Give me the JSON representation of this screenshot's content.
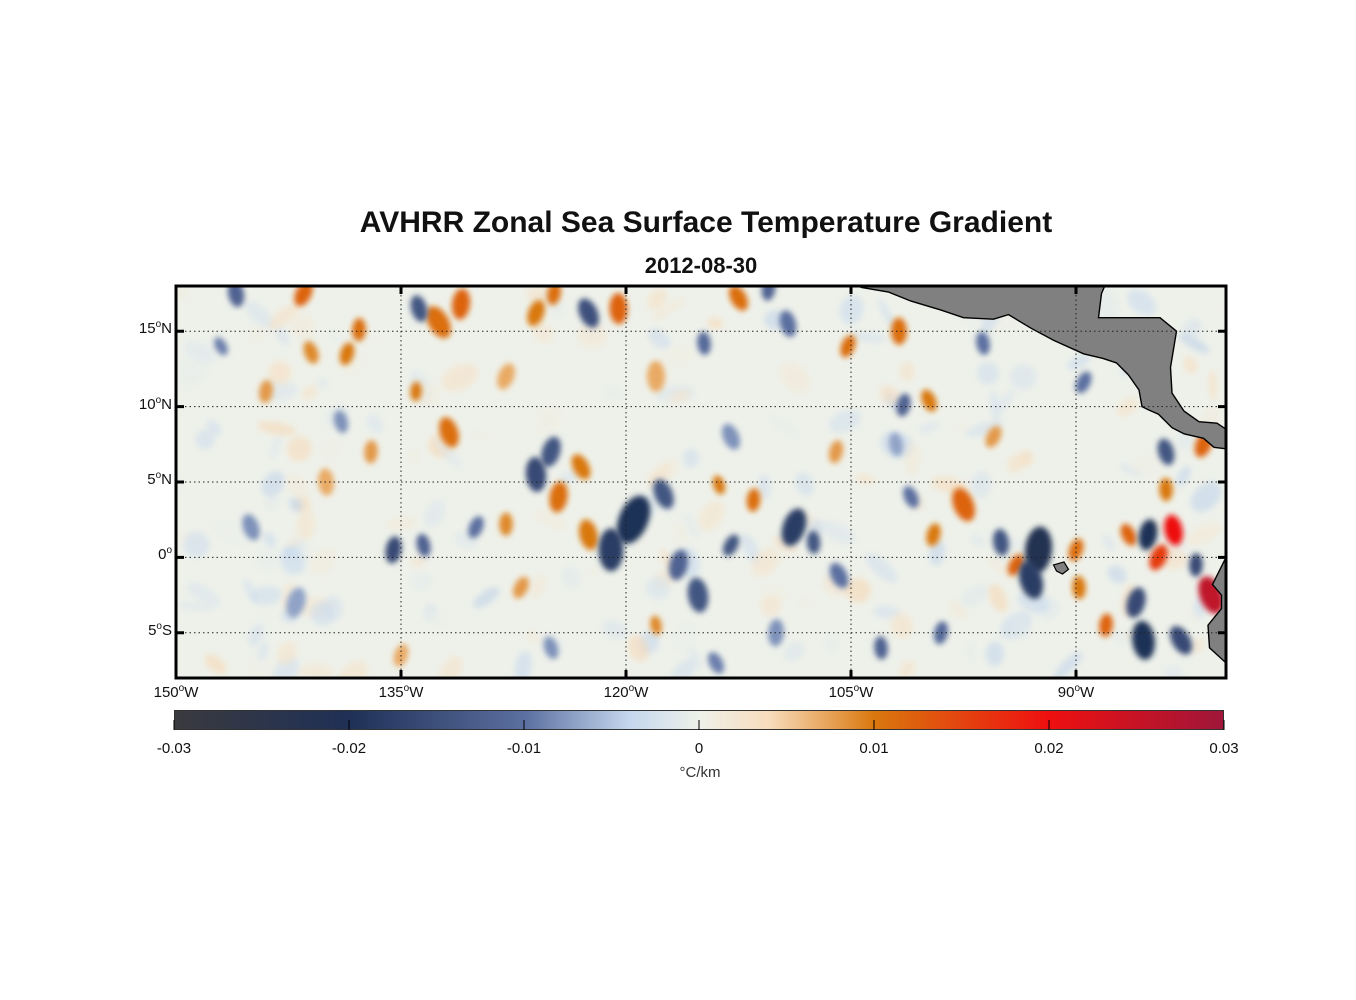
{
  "title": "AVHRR Zonal Sea Surface Temperature Gradient",
  "subtitle": "2012-08-30",
  "map": {
    "lon_range": [
      -150,
      -80
    ],
    "lat_range": [
      -8,
      18
    ],
    "lat_ticks": [
      {
        "value": 15,
        "deg": "15",
        "hemi": "N"
      },
      {
        "value": 10,
        "deg": "10",
        "hemi": "N"
      },
      {
        "value": 5,
        "deg": "5",
        "hemi": "N"
      },
      {
        "value": 0,
        "deg": "0",
        "hemi": ""
      },
      {
        "value": -5,
        "deg": "5",
        "hemi": "S"
      }
    ],
    "lon_ticks": [
      {
        "value": -150,
        "deg": "150",
        "hemi": "W"
      },
      {
        "value": -135,
        "deg": "135",
        "hemi": "W"
      },
      {
        "value": -120,
        "deg": "120",
        "hemi": "W"
      },
      {
        "value": -105,
        "deg": "105",
        "hemi": "W"
      },
      {
        "value": -90,
        "deg": "90",
        "hemi": "W"
      }
    ],
    "land_color": "#808080",
    "grid": "dotted"
  },
  "colorbar": {
    "range": [
      -0.03,
      0.03
    ],
    "ticks": [
      "-0.03",
      "-0.02",
      "-0.01",
      "0",
      "0.01",
      "0.02",
      "0.03"
    ],
    "unit": "°C/km",
    "stops": [
      {
        "v": -0.03,
        "color": "#3a3a3f"
      },
      {
        "v": -0.02,
        "color": "#1f3056"
      },
      {
        "v": -0.01,
        "color": "#5b6fa0"
      },
      {
        "v": -0.004,
        "color": "#c4d7ee"
      },
      {
        "v": 0.0,
        "color": "#eef1ea"
      },
      {
        "v": 0.004,
        "color": "#f8dcbc"
      },
      {
        "v": 0.01,
        "color": "#d9780e"
      },
      {
        "v": 0.02,
        "color": "#ee1010"
      },
      {
        "v": 0.03,
        "color": "#a0163a"
      }
    ]
  },
  "features": [
    {
      "lon": -132.5,
      "lat": 15.6,
      "val": 0.011,
      "r": 0.9
    },
    {
      "lon": -131.0,
      "lat": 16.8,
      "val": 0.012,
      "r": 0.8
    },
    {
      "lon": -133.8,
      "lat": 16.5,
      "val": -0.014,
      "r": 0.7
    },
    {
      "lon": -126.0,
      "lat": 16.2,
      "val": 0.01,
      "r": 0.7
    },
    {
      "lon": -120.5,
      "lat": 16.5,
      "val": 0.012,
      "r": 0.8
    },
    {
      "lon": -122.5,
      "lat": 16.2,
      "val": -0.015,
      "r": 0.8
    },
    {
      "lon": -124.8,
      "lat": 17.5,
      "val": 0.011,
      "r": 0.6
    },
    {
      "lon": -146.0,
      "lat": 17.5,
      "val": -0.012,
      "r": 0.7
    },
    {
      "lon": -141.5,
      "lat": 17.5,
      "val": 0.012,
      "r": 0.7
    },
    {
      "lon": -137.8,
      "lat": 15.1,
      "val": 0.011,
      "r": 0.6
    },
    {
      "lon": -141.0,
      "lat": 13.6,
      "val": 0.009,
      "r": 0.6
    },
    {
      "lon": -138.6,
      "lat": 13.5,
      "val": 0.01,
      "r": 0.6
    },
    {
      "lon": -114.8,
      "lat": 14.2,
      "val": -0.011,
      "r": 0.6
    },
    {
      "lon": -112.5,
      "lat": 17.2,
      "val": 0.011,
      "r": 0.7
    },
    {
      "lon": -110.5,
      "lat": 17.8,
      "val": -0.012,
      "r": 0.6
    },
    {
      "lon": -109.2,
      "lat": 15.5,
      "val": -0.01,
      "r": 0.7
    },
    {
      "lon": -105.2,
      "lat": 14.0,
      "val": 0.011,
      "r": 0.6
    },
    {
      "lon": -101.8,
      "lat": 15.0,
      "val": 0.011,
      "r": 0.7
    },
    {
      "lon": -99.8,
      "lat": 10.4,
      "val": 0.01,
      "r": 0.6
    },
    {
      "lon": -101.5,
      "lat": 10.1,
      "val": -0.012,
      "r": 0.6
    },
    {
      "lon": -96.2,
      "lat": 14.2,
      "val": -0.01,
      "r": 0.6
    },
    {
      "lon": -89.5,
      "lat": 11.6,
      "val": -0.01,
      "r": 0.6
    },
    {
      "lon": -134.0,
      "lat": 11.0,
      "val": 0.01,
      "r": 0.5
    },
    {
      "lon": -131.8,
      "lat": 8.3,
      "val": 0.011,
      "r": 0.8
    },
    {
      "lon": -125.0,
      "lat": 7.0,
      "val": -0.014,
      "r": 0.8
    },
    {
      "lon": -126.0,
      "lat": 5.5,
      "val": -0.016,
      "r": 0.9
    },
    {
      "lon": -123.0,
      "lat": 6.0,
      "val": 0.01,
      "r": 0.7
    },
    {
      "lon": -124.5,
      "lat": 4.0,
      "val": 0.011,
      "r": 0.8
    },
    {
      "lon": -122.5,
      "lat": 1.5,
      "val": 0.01,
      "r": 0.8
    },
    {
      "lon": -119.5,
      "lat": 2.5,
      "val": -0.02,
      "r": 1.3
    },
    {
      "lon": -121.0,
      "lat": 0.5,
      "val": -0.018,
      "r": 1.1
    },
    {
      "lon": -117.5,
      "lat": 4.2,
      "val": -0.014,
      "r": 0.8
    },
    {
      "lon": -116.5,
      "lat": -0.5,
      "val": -0.012,
      "r": 0.8
    },
    {
      "lon": -115.2,
      "lat": -2.5,
      "val": -0.014,
      "r": 0.9
    },
    {
      "lon": -113.0,
      "lat": 0.8,
      "val": -0.014,
      "r": 0.6
    },
    {
      "lon": -111.5,
      "lat": 3.8,
      "val": 0.011,
      "r": 0.6
    },
    {
      "lon": -113.8,
      "lat": 4.8,
      "val": 0.01,
      "r": 0.5
    },
    {
      "lon": -108.8,
      "lat": 2.0,
      "val": -0.018,
      "r": 1.0
    },
    {
      "lon": -107.5,
      "lat": 1.0,
      "val": -0.014,
      "r": 0.6
    },
    {
      "lon": -105.8,
      "lat": -1.2,
      "val": -0.01,
      "r": 0.7
    },
    {
      "lon": -135.5,
      "lat": 0.5,
      "val": -0.016,
      "r": 0.7
    },
    {
      "lon": -133.5,
      "lat": 0.8,
      "val": -0.012,
      "r": 0.6
    },
    {
      "lon": -130.0,
      "lat": 2.0,
      "val": -0.01,
      "r": 0.6
    },
    {
      "lon": -128.0,
      "lat": 2.2,
      "val": 0.009,
      "r": 0.6
    },
    {
      "lon": -97.5,
      "lat": 3.5,
      "val": 0.012,
      "r": 0.9
    },
    {
      "lon": -99.5,
      "lat": 1.5,
      "val": 0.01,
      "r": 0.6
    },
    {
      "lon": -95.0,
      "lat": 1.0,
      "val": -0.014,
      "r": 0.7
    },
    {
      "lon": -94.0,
      "lat": -0.5,
      "val": 0.012,
      "r": 0.6
    },
    {
      "lon": -92.5,
      "lat": 0.5,
      "val": -0.022,
      "r": 1.2
    },
    {
      "lon": -93.0,
      "lat": -1.5,
      "val": -0.018,
      "r": 1.0
    },
    {
      "lon": -90.0,
      "lat": 0.5,
      "val": 0.011,
      "r": 0.6
    },
    {
      "lon": -89.8,
      "lat": -2.0,
      "val": 0.01,
      "r": 0.6
    },
    {
      "lon": -86.5,
      "lat": 1.5,
      "val": 0.012,
      "r": 0.6
    },
    {
      "lon": -85.2,
      "lat": 1.5,
      "val": -0.02,
      "r": 0.8
    },
    {
      "lon": -83.5,
      "lat": 1.8,
      "val": 0.02,
      "r": 0.8
    },
    {
      "lon": -84.5,
      "lat": 0.0,
      "val": 0.016,
      "r": 0.7
    },
    {
      "lon": -82.0,
      "lat": -0.5,
      "val": -0.016,
      "r": 0.6
    },
    {
      "lon": -81.0,
      "lat": -2.5,
      "val": 0.026,
      "r": 1.0
    },
    {
      "lon": -86.0,
      "lat": -3.0,
      "val": -0.016,
      "r": 0.8
    },
    {
      "lon": -85.5,
      "lat": -5.5,
      "val": -0.02,
      "r": 1.0
    },
    {
      "lon": -83.0,
      "lat": -5.5,
      "val": -0.016,
      "r": 0.8
    },
    {
      "lon": -88.0,
      "lat": -4.5,
      "val": 0.012,
      "r": 0.6
    },
    {
      "lon": -84.0,
      "lat": 7.0,
      "val": -0.014,
      "r": 0.7
    },
    {
      "lon": -81.5,
      "lat": 7.5,
      "val": 0.012,
      "r": 0.7
    },
    {
      "lon": -84.0,
      "lat": 4.5,
      "val": 0.01,
      "r": 0.6
    },
    {
      "lon": -101.0,
      "lat": 4.0,
      "val": -0.01,
      "r": 0.6
    },
    {
      "lon": -99.0,
      "lat": -5.0,
      "val": -0.011,
      "r": 0.6
    },
    {
      "lon": -118.0,
      "lat": -4.5,
      "val": 0.009,
      "r": 0.5
    },
    {
      "lon": -127.0,
      "lat": -2.0,
      "val": 0.008,
      "r": 0.6
    },
    {
      "lon": -137.0,
      "lat": 7.0,
      "val": 0.008,
      "r": 0.6
    },
    {
      "lon": -145.0,
      "lat": 2.0,
      "val": -0.008,
      "r": 0.7
    },
    {
      "lon": -142.0,
      "lat": -3.0,
      "val": -0.007,
      "r": 0.8
    },
    {
      "lon": -140.0,
      "lat": 5.0,
      "val": 0.007,
      "r": 0.7
    },
    {
      "lon": -147.0,
      "lat": 14.0,
      "val": -0.009,
      "r": 0.5
    },
    {
      "lon": -144.0,
      "lat": 11.0,
      "val": 0.008,
      "r": 0.6
    },
    {
      "lon": -139.0,
      "lat": 9.0,
      "val": -0.008,
      "r": 0.6
    },
    {
      "lon": -128.0,
      "lat": 12.0,
      "val": 0.007,
      "r": 0.7
    },
    {
      "lon": -118.0,
      "lat": 12.0,
      "val": 0.007,
      "r": 0.8
    },
    {
      "lon": -113.0,
      "lat": 8.0,
      "val": -0.008,
      "r": 0.7
    },
    {
      "lon": -106.0,
      "lat": 7.0,
      "val": 0.008,
      "r": 0.6
    },
    {
      "lon": -102.0,
      "lat": 7.5,
      "val": -0.007,
      "r": 0.6
    },
    {
      "lon": -95.5,
      "lat": 8.0,
      "val": 0.008,
      "r": 0.6
    },
    {
      "lon": -110.0,
      "lat": -5.0,
      "val": -0.008,
      "r": 0.7
    },
    {
      "lon": -125.0,
      "lat": -6.0,
      "val": -0.008,
      "r": 0.6
    },
    {
      "lon": -135.0,
      "lat": -6.5,
      "val": 0.007,
      "r": 0.6
    },
    {
      "lon": -103.0,
      "lat": -6.0,
      "val": -0.012,
      "r": 0.6
    },
    {
      "lon": -114.0,
      "lat": -7.0,
      "val": -0.009,
      "r": 0.6
    }
  ]
}
